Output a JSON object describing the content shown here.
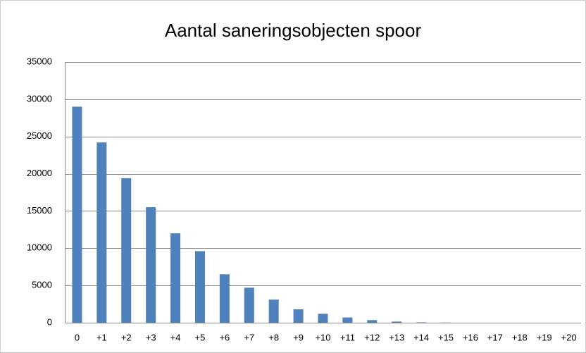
{
  "chart_data": {
    "type": "bar",
    "title": "Aantal saneringsobjecten spoor",
    "categories": [
      "0",
      "+1",
      "+2",
      "+3",
      "+4",
      "+5",
      "+6",
      "+7",
      "+8",
      "+9",
      "+10",
      "+11",
      "+12",
      "+13",
      "+14",
      "+15",
      "+16",
      "+17",
      "+18",
      "+19",
      "+20"
    ],
    "values": [
      29000,
      24200,
      19400,
      15500,
      12000,
      9600,
      6500,
      4700,
      3100,
      1800,
      1200,
      700,
      350,
      150,
      50,
      20,
      0,
      0,
      0,
      0,
      0
    ],
    "color": "#4f81bd",
    "ylim": [
      0,
      35000
    ],
    "yticks": [
      0,
      5000,
      10000,
      15000,
      20000,
      25000,
      30000,
      35000
    ],
    "grid": true
  }
}
